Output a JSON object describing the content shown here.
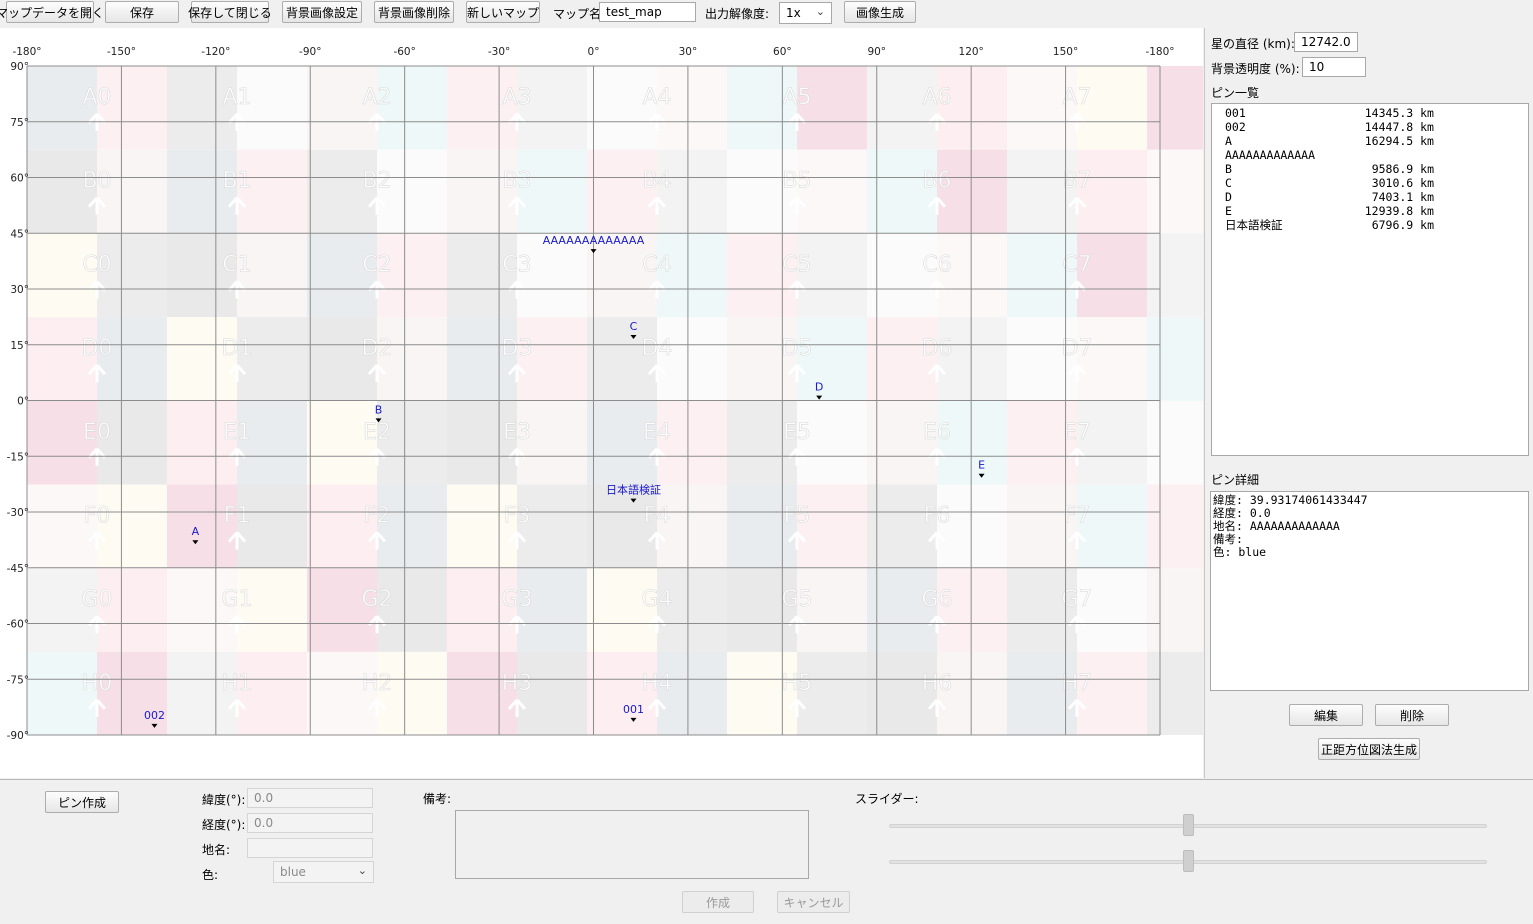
{
  "toolbar": {
    "open_label": "マップデータを開く",
    "save_label": "保存",
    "save_close_label": "保存して閉じる",
    "bg_set_label": "背景画像設定",
    "bg_delete_label": "背景画像削除",
    "new_map_label": "新しいマップ",
    "map_name_label": "マップ名:",
    "map_name_value": "test_map",
    "resolution_label": "出力解像度:",
    "resolution_value": "1x",
    "generate_label": "画像生成"
  },
  "map": {
    "lon_labels": [
      "-180°",
      "-150°",
      "-120°",
      "-90°",
      "-60°",
      "-30°",
      "0°",
      "30°",
      "60°",
      "90°",
      "120°",
      "150°",
      "-180°"
    ],
    "lat_labels": [
      "90°",
      "75°",
      "60°",
      "45°",
      "30°",
      "15°",
      "0°",
      "-15°",
      "-30°",
      "-45°",
      "-60°",
      "-75°",
      "-90°"
    ],
    "tile_rows": [
      "A",
      "B",
      "C",
      "D",
      "E",
      "F",
      "G",
      "H"
    ],
    "tile_cols": 8,
    "tile_colors": [
      "#e8ecef",
      "#eef8f8",
      "#fefcf2",
      "#fdf0f3",
      "#f6dfe7",
      "#ececec",
      "#f3f3f3",
      "#e9e9e9",
      "#fbfbfb",
      "#fdeff1",
      "#f9f5f5",
      "#fcf8f8"
    ],
    "pins": [
      {
        "name": "AAAAAAAAAAAAA",
        "lat": 39.93,
        "lon": 0.0
      },
      {
        "name": "C",
        "lat": 16.8,
        "lon": 12.7
      },
      {
        "name": "D",
        "lat": 0.5,
        "lon": 71.7
      },
      {
        "name": "B",
        "lat": -5.6,
        "lon": -68.3
      },
      {
        "name": "E",
        "lat": -20.5,
        "lon": 123.3
      },
      {
        "name": "日本語検証",
        "lat": -27.2,
        "lon": 12.7
      },
      {
        "name": "A",
        "lat": -38.4,
        "lon": -126.5
      },
      {
        "name": "002",
        "lat": -87.8,
        "lon": -139.5
      },
      {
        "name": "001",
        "lat": -86.2,
        "lon": 12.7
      }
    ],
    "pin_color": "#1a1acc"
  },
  "side": {
    "diameter_label": "星の直径 (km):",
    "diameter_value": "12742.0",
    "opacity_label": "背景透明度 (%):",
    "opacity_value": "10",
    "pin_list_title": "ピン一覧",
    "pin_list": [
      {
        "name": "001",
        "dist": "14345.3 km"
      },
      {
        "name": "002",
        "dist": "14447.8 km"
      },
      {
        "name": "A",
        "dist": "16294.5 km"
      },
      {
        "name": "AAAAAAAAAAAAA",
        "dist": ""
      },
      {
        "name": "B",
        "dist": "9586.9 km"
      },
      {
        "name": "C",
        "dist": "3010.6 km"
      },
      {
        "name": "D",
        "dist": "7403.1 km"
      },
      {
        "name": "E",
        "dist": "12939.8 km"
      },
      {
        "name": "日本語検証",
        "dist": "6796.9 km"
      }
    ],
    "detail_title": "ピン詳細",
    "detail_lines": [
      "緯度: 39.93174061433447",
      "経度: 0.0",
      "地名: AAAAAAAAAAAAA",
      "備考:",
      "色: blue"
    ],
    "edit_label": "編集",
    "delete_label": "削除",
    "azimuthal_label": "正距方位図法生成"
  },
  "bottom": {
    "create_pin_label": "ピン作成",
    "lat_label": "緯度(°):",
    "lat_value": "0.0",
    "lon_label": "経度(°):",
    "lon_value": "0.0",
    "place_label": "地名:",
    "place_value": "",
    "color_label": "色:",
    "color_value": "blue",
    "memo_label": "備考:",
    "slider_label": "スライダー:",
    "slider1_value": 0.5,
    "slider2_value": 0.5,
    "create_label": "作成",
    "cancel_label": "キャンセル"
  }
}
